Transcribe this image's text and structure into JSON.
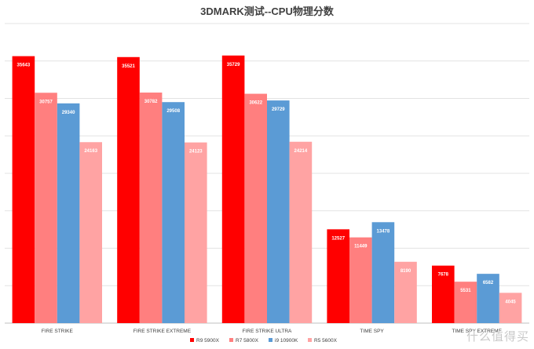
{
  "chart_data": {
    "type": "bar",
    "title": "3DMARK测试--CPU物理分数",
    "categories": [
      "FIRE STRIKE",
      "FIRE STRIKE EXTREME",
      "FIRE STRIKE ULTRA",
      "TIME SPY",
      "TIME SPY EXTREME"
    ],
    "series": [
      {
        "name": "R9 5900X",
        "color": "#ff0000",
        "values": [
          35643,
          35521,
          35729,
          12527,
          7678
        ]
      },
      {
        "name": "R7 5800X",
        "color": "#ff7f7f",
        "values": [
          30757,
          30782,
          30622,
          11449,
          5531
        ]
      },
      {
        "name": "i9 10900K",
        "color": "#5b9bd5",
        "values": [
          29340,
          29508,
          29729,
          13478,
          6582
        ]
      },
      {
        "name": "R5 5600X",
        "color": "#ffa3a3",
        "values": [
          24163,
          24123,
          24214,
          8190,
          4045
        ]
      }
    ],
    "ylim": [
      0,
      40000
    ],
    "grid": true,
    "y_axis_visible": false,
    "legend_position": "bottom"
  },
  "watermark": "什么值得买"
}
